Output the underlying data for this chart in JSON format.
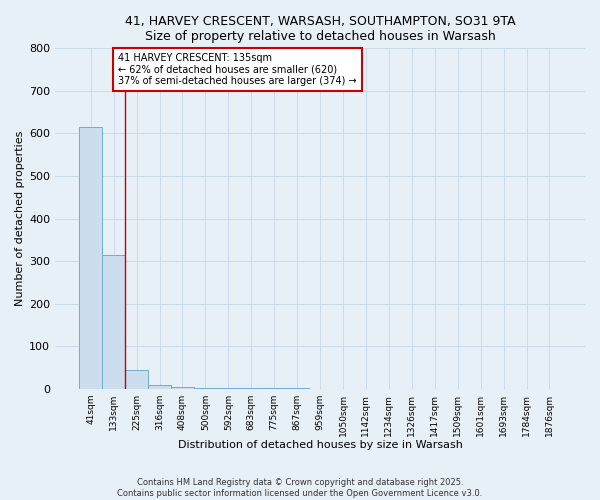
{
  "title_line1": "41, HARVEY CRESCENT, WARSASH, SOUTHAMPTON, SO31 9TA",
  "title_line2": "Size of property relative to detached houses in Warsash",
  "xlabel": "Distribution of detached houses by size in Warsash",
  "ylabel": "Number of detached properties",
  "bar_labels": [
    "41sqm",
    "133sqm",
    "225sqm",
    "316sqm",
    "408sqm",
    "500sqm",
    "592sqm",
    "683sqm",
    "775sqm",
    "867sqm",
    "959sqm",
    "1050sqm",
    "1142sqm",
    "1234sqm",
    "1326sqm",
    "1417sqm",
    "1509sqm",
    "1601sqm",
    "1693sqm",
    "1784sqm",
    "1876sqm"
  ],
  "bar_values": [
    615,
    315,
    45,
    10,
    5,
    3,
    2,
    1,
    1,
    1,
    0,
    0,
    0,
    0,
    0,
    0,
    0,
    0,
    0,
    0,
    0
  ],
  "bar_color": "#ccdded",
  "bar_edgecolor": "#6aaed6",
  "property_line_x": 1.5,
  "annotation_text_line1": "41 HARVEY CRESCENT: 135sqm",
  "annotation_text_line2": "← 62% of detached houses are smaller (620)",
  "annotation_text_line3": "37% of semi-detached houses are larger (374) →",
  "annotation_box_color": "#ffffff",
  "annotation_box_edgecolor": "#cc0000",
  "property_line_color": "#cc0000",
  "ylim": [
    0,
    800
  ],
  "yticks": [
    0,
    100,
    200,
    300,
    400,
    500,
    600,
    700,
    800
  ],
  "grid_color": "#c5d8ea",
  "background_color": "#e8f0f7",
  "footer_line1": "Contains HM Land Registry data © Crown copyright and database right 2025.",
  "footer_line2": "Contains public sector information licensed under the Open Government Licence v3.0."
}
